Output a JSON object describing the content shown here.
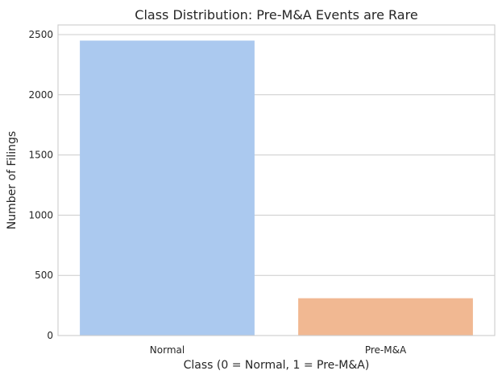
{
  "chart_data": {
    "type": "bar",
    "title": "Class Distribution: Pre-M&A Events are Rare",
    "xlabel": "Class (0 = Normal, 1 = Pre-M&A)",
    "ylabel": "Number of Filings",
    "categories": [
      "Normal",
      "Pre-M&A"
    ],
    "values": [
      2450,
      310
    ],
    "colors": [
      "#abc9ef",
      "#f1b892"
    ],
    "ylim": [
      0,
      2580
    ],
    "yticks": [
      0,
      500,
      1000,
      1500,
      2000,
      2500
    ],
    "grid": "horizontal",
    "legend": "none"
  }
}
